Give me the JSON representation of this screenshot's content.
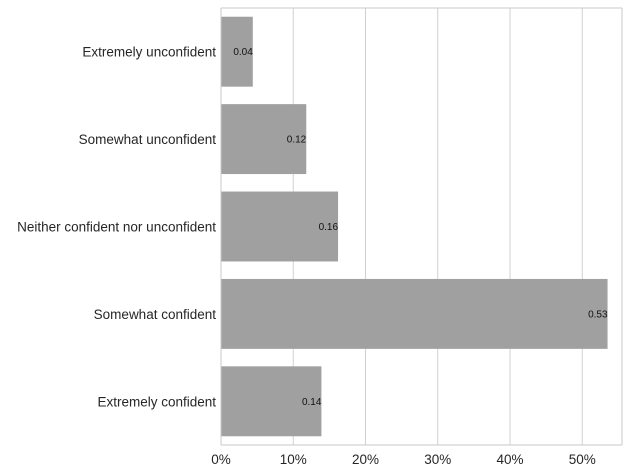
{
  "chart_data": {
    "type": "bar",
    "orientation": "horizontal",
    "title": "",
    "xlabel": "",
    "ylabel": "",
    "categories": [
      "Extremely unconfident",
      "Somewhat unconfident",
      "Neither confident nor unconfident",
      "Somewhat confident",
      "Extremely confident"
    ],
    "values": [
      0.044,
      0.118,
      0.162,
      0.535,
      0.139
    ],
    "data_labels": [
      "0.04",
      "0.12",
      "0.16",
      "0.53",
      "0.14"
    ],
    "xlim": [
      0,
      0.555
    ],
    "x_ticks": [
      0,
      0.1,
      0.2,
      0.3,
      0.4,
      0.5
    ],
    "x_tick_labels": [
      "0%",
      "10%",
      "20%",
      "30%",
      "40%",
      "50%"
    ],
    "grid": "vertical",
    "bar_color": "#a0a0a0",
    "grid_color": "#d0d0d0",
    "axis_color": "#c8c8c8",
    "text_color": "#262626"
  }
}
